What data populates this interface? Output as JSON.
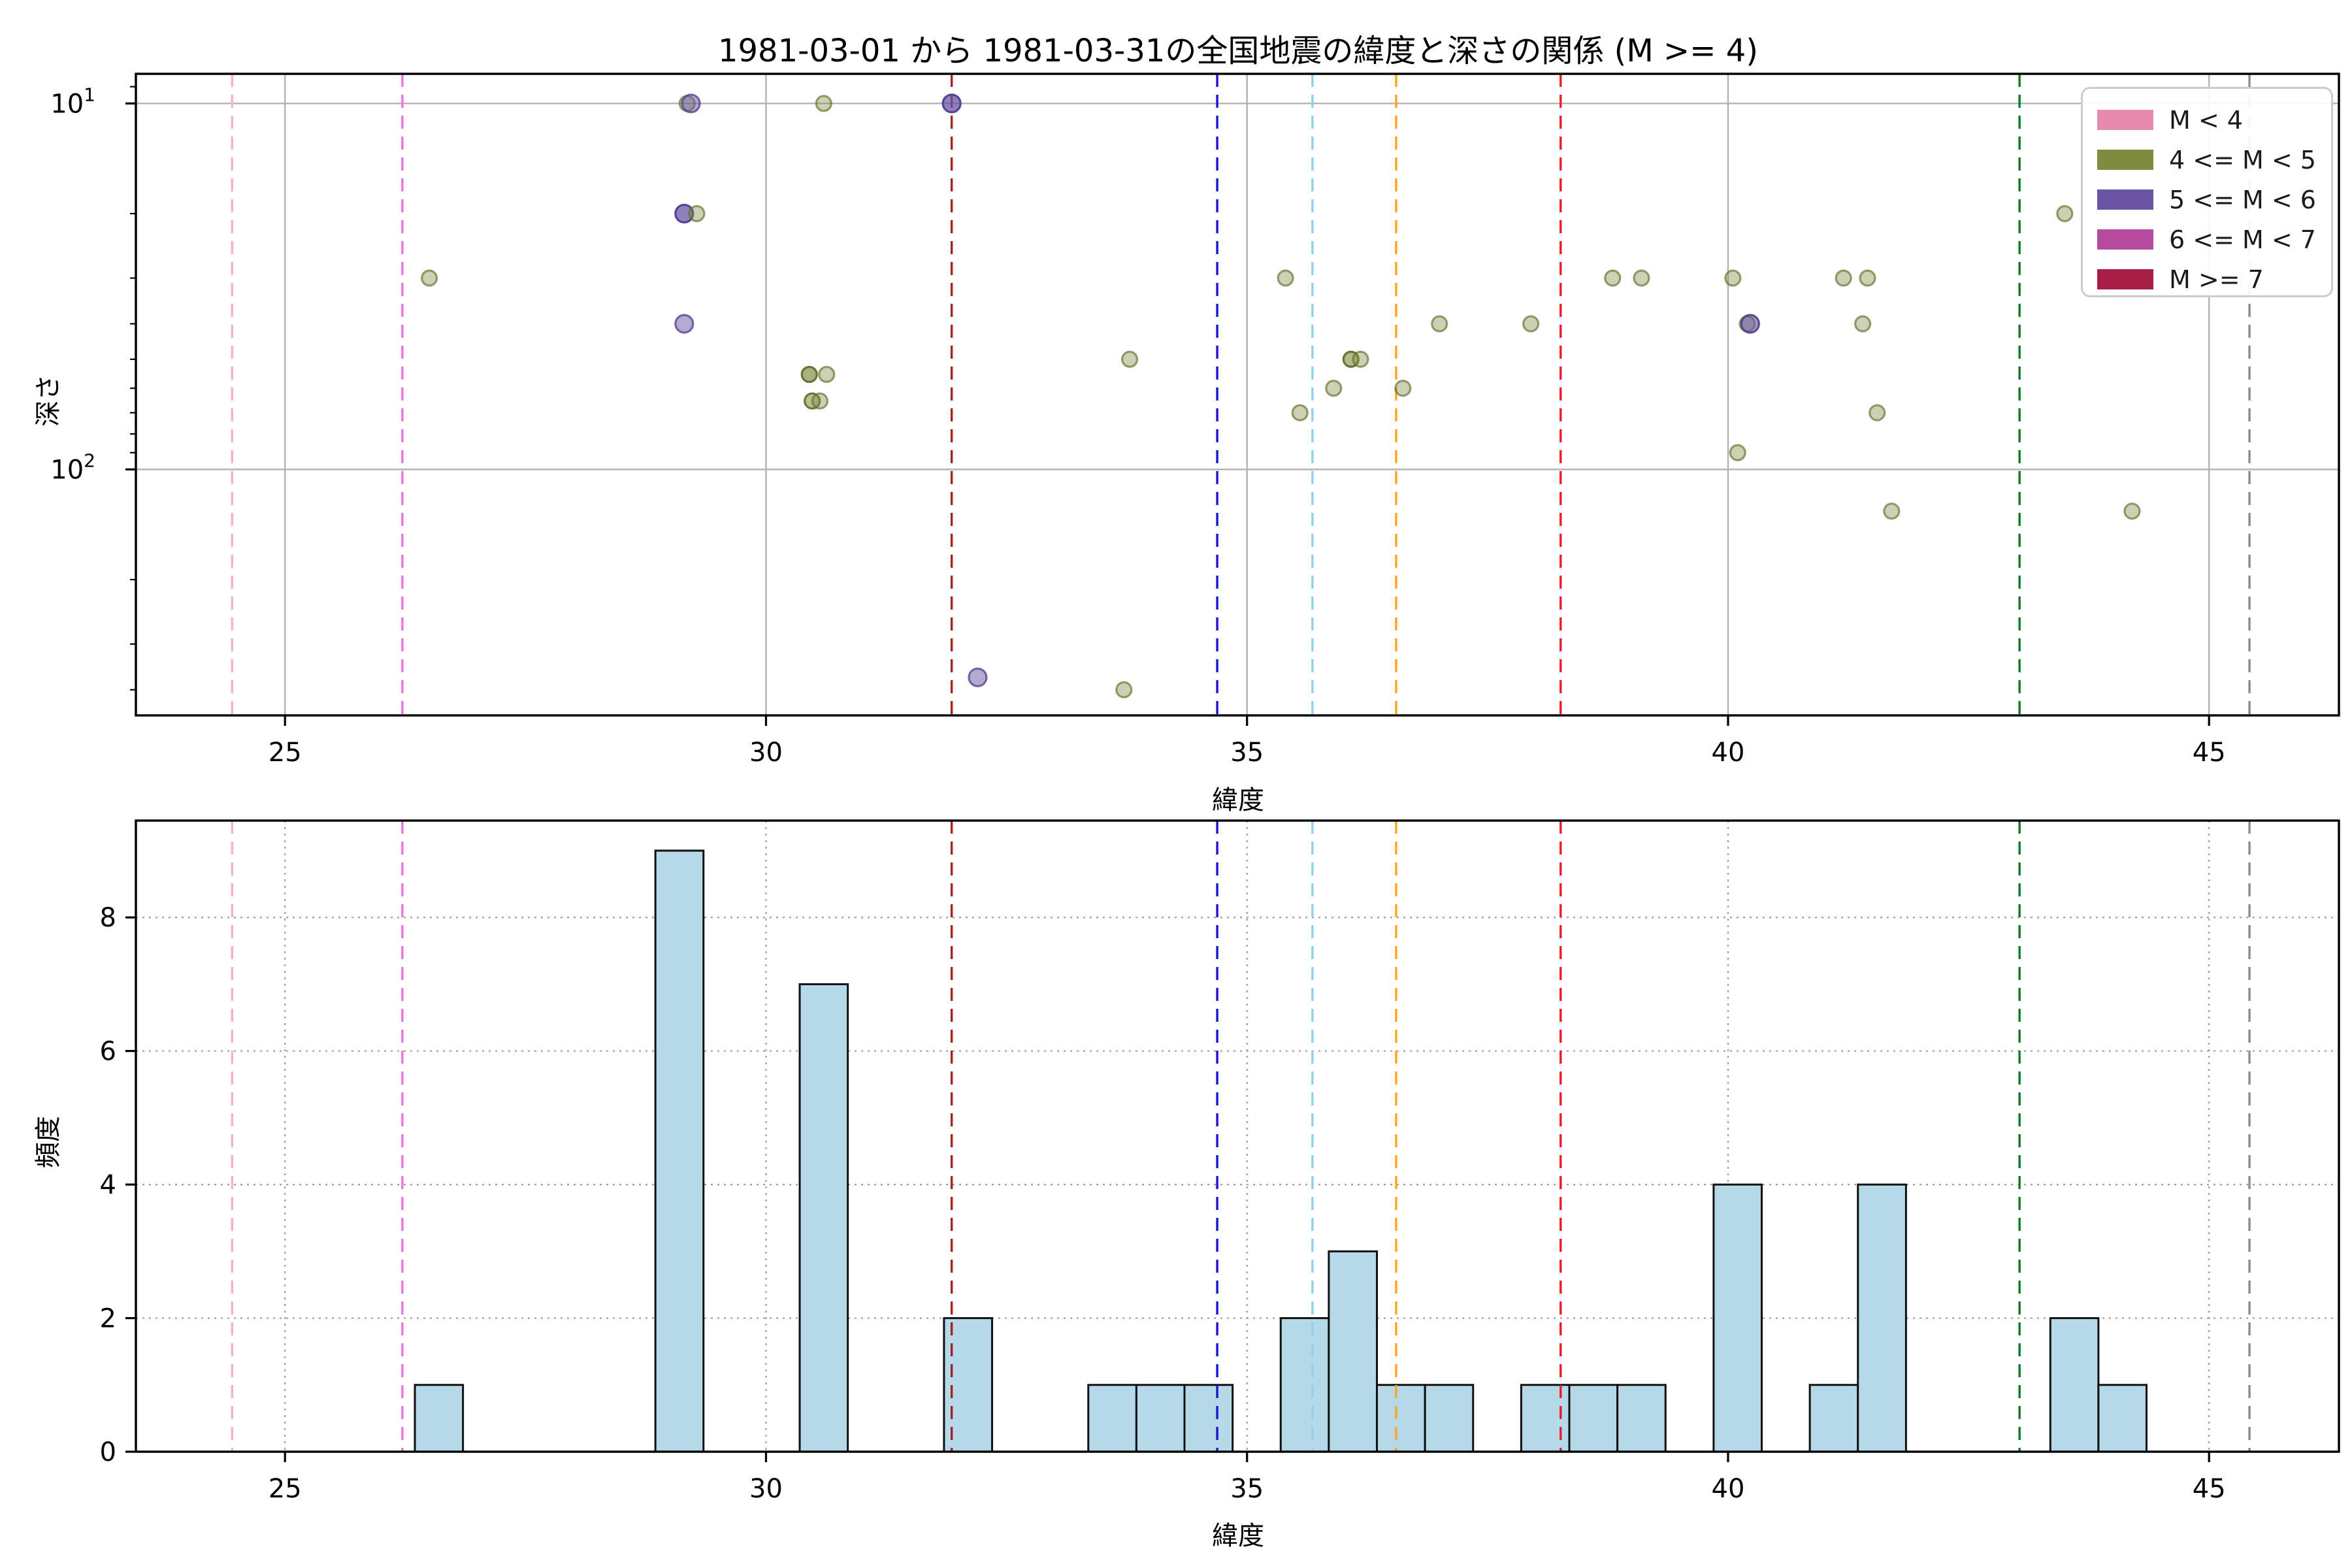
{
  "title": "1981-03-01 から 1981-03-31の全国地震の緯度と深さの関係 (M >= 4)",
  "axes": {
    "top": {
      "xlabel": "緯度",
      "ylabel": "深さ"
    },
    "bottom": {
      "xlabel": "緯度",
      "ylabel": "頻度"
    }
  },
  "legend": {
    "entries": [
      {
        "label": "M < 4",
        "color": "#e78bad"
      },
      {
        "label": "4 <= M < 5",
        "color": "#7d8c3f"
      },
      {
        "label": "5 <= M < 6",
        "color": "#6a55a4"
      },
      {
        "label": "6 <= M < 7",
        "color": "#b44b9e"
      },
      {
        "label": "M >= 7",
        "color": "#a81d45"
      }
    ]
  },
  "colors": {
    "spine": "#000000",
    "grid_solid": "#b3b3b3",
    "grid_dotted": "#9e9e9e",
    "bar_fill": "#b5d9e8",
    "bar_edge": "#111111",
    "olive_fill": "#7d8c3f",
    "olive_edge": "#5f6e2a",
    "purple_fill": "#6a55a4",
    "purple_edge": "#4f3d8c",
    "tick_text": "#000000"
  },
  "chart_data": [
    {
      "type": "scatter",
      "title": "1981-03-01 から 1981-03-31の全国地震の緯度と深さの関係 (M >= 4)",
      "xlabel": "緯度",
      "ylabel": "深さ",
      "xlim": [
        23.45,
        46.35
      ],
      "ylim_depth_log_inverted": [
        8.3,
        470
      ],
      "grid": "solid",
      "legend_position": "upper right",
      "xticks": [
        {
          "value": 25,
          "label": "25"
        },
        {
          "value": 30,
          "label": "30"
        },
        {
          "value": 35,
          "label": "35"
        },
        {
          "value": 40,
          "label": "40"
        },
        {
          "value": 45,
          "label": "45"
        }
      ],
      "yticks": [
        {
          "value": 10,
          "label": "10",
          "exp": "1"
        },
        {
          "value": 100,
          "label": "10",
          "exp": "2"
        }
      ],
      "yticks_minor": [
        9,
        20,
        30,
        40,
        50,
        60,
        70,
        80,
        90,
        200,
        300,
        400
      ],
      "points": [
        {
          "lat": 29.18,
          "depth": 10,
          "cat": "4 <= M < 5"
        },
        {
          "lat": 29.22,
          "depth": 10,
          "cat": "5 <= M < 6"
        },
        {
          "lat": 30.6,
          "depth": 10,
          "cat": "4 <= M < 5"
        },
        {
          "lat": 31.93,
          "depth": 10,
          "cat": "5 <= M < 6",
          "emph": 1.5
        },
        {
          "lat": 29.15,
          "depth": 20,
          "cat": "5 <= M < 6",
          "emph": 1.5
        },
        {
          "lat": 29.28,
          "depth": 20,
          "cat": "4 <= M < 5"
        },
        {
          "lat": 26.5,
          "depth": 30,
          "cat": "4 <= M < 5"
        },
        {
          "lat": 29.15,
          "depth": 40,
          "cat": "5 <= M < 6"
        },
        {
          "lat": 30.45,
          "depth": 55,
          "cat": "4 <= M < 5",
          "emph": 1.7
        },
        {
          "lat": 30.63,
          "depth": 55,
          "cat": "4 <= M < 5"
        },
        {
          "lat": 30.48,
          "depth": 65,
          "cat": "4 <= M < 5",
          "emph": 1.4
        },
        {
          "lat": 30.56,
          "depth": 65,
          "cat": "4 <= M < 5"
        },
        {
          "lat": 33.78,
          "depth": 50,
          "cat": "4 <= M < 5"
        },
        {
          "lat": 33.72,
          "depth": 400,
          "cat": "4 <= M < 5"
        },
        {
          "lat": 32.2,
          "depth": 370,
          "cat": "5 <= M < 6"
        },
        {
          "lat": 35.4,
          "depth": 30,
          "cat": "4 <= M < 5"
        },
        {
          "lat": 35.55,
          "depth": 70,
          "cat": "4 <= M < 5"
        },
        {
          "lat": 35.9,
          "depth": 60,
          "cat": "4 <= M < 5"
        },
        {
          "lat": 36.08,
          "depth": 50,
          "cat": "4 <= M < 5",
          "emph": 1.5
        },
        {
          "lat": 36.18,
          "depth": 50,
          "cat": "4 <= M < 5"
        },
        {
          "lat": 36.62,
          "depth": 60,
          "cat": "4 <= M < 5"
        },
        {
          "lat": 37.0,
          "depth": 40,
          "cat": "4 <= M < 5"
        },
        {
          "lat": 37.95,
          "depth": 40,
          "cat": "4 <= M < 5"
        },
        {
          "lat": 38.8,
          "depth": 30,
          "cat": "4 <= M < 5"
        },
        {
          "lat": 39.1,
          "depth": 30,
          "cat": "4 <= M < 5"
        },
        {
          "lat": 40.05,
          "depth": 30,
          "cat": "4 <= M < 5"
        },
        {
          "lat": 40.2,
          "depth": 40,
          "cat": "4 <= M < 5"
        },
        {
          "lat": 40.23,
          "depth": 40,
          "cat": "5 <= M < 6",
          "emph": 1.2
        },
        {
          "lat": 40.1,
          "depth": 90,
          "cat": "4 <= M < 5"
        },
        {
          "lat": 41.2,
          "depth": 30,
          "cat": "4 <= M < 5"
        },
        {
          "lat": 41.45,
          "depth": 30,
          "cat": "4 <= M < 5"
        },
        {
          "lat": 41.4,
          "depth": 40,
          "cat": "4 <= M < 5"
        },
        {
          "lat": 41.55,
          "depth": 70,
          "cat": "4 <= M < 5"
        },
        {
          "lat": 41.7,
          "depth": 130,
          "cat": "4 <= M < 5"
        },
        {
          "lat": 44.2,
          "depth": 130,
          "cat": "4 <= M < 5"
        },
        {
          "lat": 43.5,
          "depth": 20,
          "cat": "4 <= M < 5"
        }
      ],
      "vlines": [
        {
          "lat": 24.45,
          "color": "#f6b3cb"
        },
        {
          "lat": 26.22,
          "color": "#ec72df"
        },
        {
          "lat": 31.93,
          "color": "#a52223"
        },
        {
          "lat": 34.69,
          "color": "#1b13cf"
        },
        {
          "lat": 35.68,
          "color": "#8ed0ee"
        },
        {
          "lat": 36.55,
          "color": "#ffa41e"
        },
        {
          "lat": 38.26,
          "color": "#ee1c25"
        },
        {
          "lat": 43.03,
          "color": "#0b7d20"
        },
        {
          "lat": 45.42,
          "color": "#8c8c8c"
        }
      ]
    },
    {
      "type": "bar",
      "xlabel": "緯度",
      "ylabel": "頻度",
      "xlim": [
        23.45,
        46.35
      ],
      "ylim": [
        0,
        9.45
      ],
      "bin_width": 0.5,
      "grid": "dotted",
      "xticks": [
        {
          "value": 25,
          "label": "25"
        },
        {
          "value": 30,
          "label": "30"
        },
        {
          "value": 35,
          "label": "35"
        },
        {
          "value": 40,
          "label": "40"
        },
        {
          "value": 45,
          "label": "45"
        }
      ],
      "yticks": [
        {
          "value": 0,
          "label": "0"
        },
        {
          "value": 2,
          "label": "2"
        },
        {
          "value": 4,
          "label": "4"
        },
        {
          "value": 6,
          "label": "6"
        },
        {
          "value": 8,
          "label": "8"
        }
      ],
      "bars": [
        {
          "x0": 26.35,
          "x1": 26.85,
          "count": 1
        },
        {
          "x0": 28.85,
          "x1": 29.35,
          "count": 9
        },
        {
          "x0": 30.35,
          "x1": 30.85,
          "count": 7
        },
        {
          "x0": 31.85,
          "x1": 32.35,
          "count": 2
        },
        {
          "x0": 33.35,
          "x1": 33.85,
          "count": 1
        },
        {
          "x0": 33.85,
          "x1": 34.35,
          "count": 1
        },
        {
          "x0": 34.35,
          "x1": 34.85,
          "count": 1
        },
        {
          "x0": 35.35,
          "x1": 35.85,
          "count": 2
        },
        {
          "x0": 35.85,
          "x1": 36.35,
          "count": 3
        },
        {
          "x0": 36.35,
          "x1": 36.85,
          "count": 1
        },
        {
          "x0": 36.85,
          "x1": 37.35,
          "count": 1
        },
        {
          "x0": 37.85,
          "x1": 38.35,
          "count": 1
        },
        {
          "x0": 38.35,
          "x1": 38.85,
          "count": 1
        },
        {
          "x0": 38.85,
          "x1": 39.35,
          "count": 1
        },
        {
          "x0": 39.85,
          "x1": 40.35,
          "count": 4
        },
        {
          "x0": 40.85,
          "x1": 41.35,
          "count": 1
        },
        {
          "x0": 41.35,
          "x1": 41.85,
          "count": 4
        },
        {
          "x0": 43.35,
          "x1": 43.85,
          "count": 2
        },
        {
          "x0": 43.85,
          "x1": 44.35,
          "count": 1
        }
      ],
      "vlines": [
        {
          "lat": 24.45,
          "color": "#f6b3cb"
        },
        {
          "lat": 26.22,
          "color": "#ec72df"
        },
        {
          "lat": 31.93,
          "color": "#a52223"
        },
        {
          "lat": 34.69,
          "color": "#1b13cf"
        },
        {
          "lat": 35.68,
          "color": "#8ed0ee"
        },
        {
          "lat": 36.55,
          "color": "#ffa41e"
        },
        {
          "lat": 38.26,
          "color": "#ee1c25"
        },
        {
          "lat": 43.03,
          "color": "#0b7d20"
        },
        {
          "lat": 45.42,
          "color": "#8c8c8c"
        }
      ]
    }
  ]
}
